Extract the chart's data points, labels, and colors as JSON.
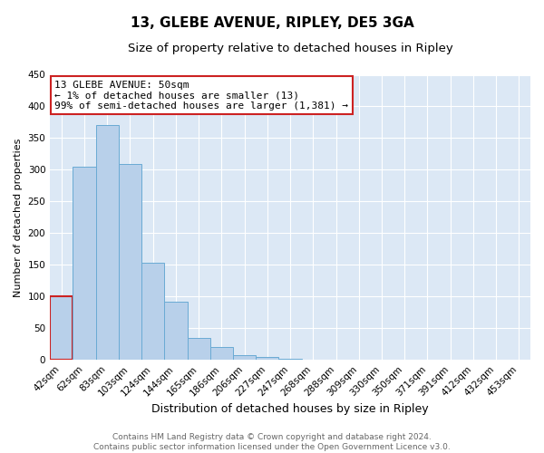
{
  "title": "13, GLEBE AVENUE, RIPLEY, DE5 3GA",
  "subtitle": "Size of property relative to detached houses in Ripley",
  "xlabel": "Distribution of detached houses by size in Ripley",
  "ylabel": "Number of detached properties",
  "categories": [
    "42sqm",
    "62sqm",
    "83sqm",
    "103sqm",
    "124sqm",
    "144sqm",
    "165sqm",
    "186sqm",
    "206sqm",
    "227sqm",
    "247sqm",
    "268sqm",
    "288sqm",
    "309sqm",
    "330sqm",
    "350sqm",
    "371sqm",
    "391sqm",
    "412sqm",
    "432sqm",
    "453sqm"
  ],
  "bar_values": [
    100,
    305,
    370,
    309,
    153,
    92,
    34,
    20,
    8,
    5,
    2,
    1,
    0,
    0,
    0,
    0,
    0,
    0,
    0,
    0,
    1
  ],
  "bar_color": "#b8d0ea",
  "bar_edge_color": "#6aaad4",
  "highlight_bar_edge_color": "#cc2222",
  "annotation_text": "13 GLEBE AVENUE: 50sqm\n← 1% of detached houses are smaller (13)\n99% of semi-detached houses are larger (1,381) →",
  "annotation_box_color": "#ffffff",
  "annotation_box_edge_color": "#cc2222",
  "ylim": [
    0,
    450
  ],
  "yticks": [
    0,
    50,
    100,
    150,
    200,
    250,
    300,
    350,
    400,
    450
  ],
  "footer_line1": "Contains HM Land Registry data © Crown copyright and database right 2024.",
  "footer_line2": "Contains public sector information licensed under the Open Government Licence v3.0.",
  "bg_color": "#ffffff",
  "plot_bg_color": "#dce8f5",
  "grid_color": "#ffffff",
  "title_fontsize": 11,
  "subtitle_fontsize": 9.5,
  "xlabel_fontsize": 9,
  "ylabel_fontsize": 8,
  "tick_fontsize": 7.5,
  "footer_fontsize": 6.5
}
